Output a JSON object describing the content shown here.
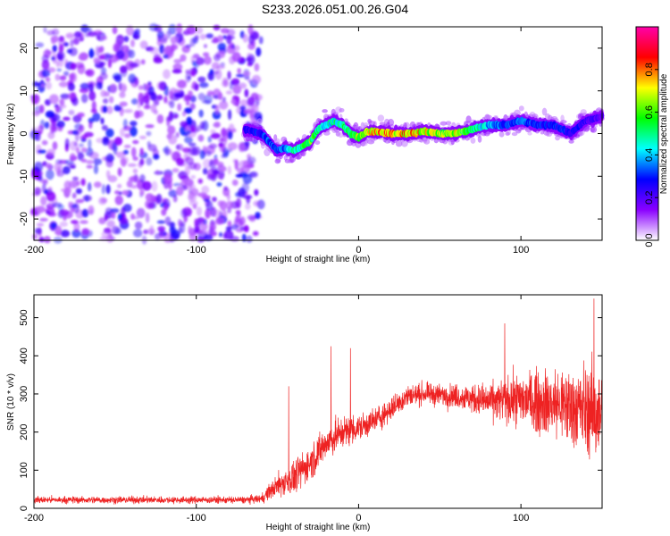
{
  "title": "S233.2026.051.00.26.G04",
  "chart_data": [
    {
      "type": "heatmap",
      "xlabel": "Height of straight line (km)",
      "ylabel": "Frequency (Hz)",
      "xlim": [
        -200,
        150
      ],
      "ylim": [
        -25,
        25
      ],
      "xticks": [
        "-200",
        "-100",
        "0",
        "100"
      ],
      "yticks": [
        "-20",
        "-10",
        "0",
        "10",
        "20"
      ],
      "colorbar": {
        "label": "Normalized spectral amplitude",
        "range": [
          0,
          1
        ],
        "ticks": [
          "0.0",
          "0.2",
          "0.4",
          "0.6",
          "0.8"
        ],
        "colors": [
          "#ffffff",
          "#8a00ff",
          "#0000ff",
          "#00ffff",
          "#00ff00",
          "#ffff00",
          "#ff0000",
          "#ff00aa"
        ]
      },
      "noise_region_x": [
        -200,
        -60
      ],
      "ridge": {
        "x": [
          -70,
          -60,
          -55,
          -50,
          -45,
          -40,
          -35,
          -30,
          -25,
          -20,
          -15,
          -10,
          -5,
          0,
          5,
          10,
          20,
          30,
          40,
          50,
          60,
          70,
          80,
          90,
          100,
          110,
          120,
          130,
          140,
          150
        ],
        "freq": [
          1,
          0,
          -2,
          -4,
          -3.5,
          -4,
          -3,
          -2,
          1,
          2,
          3,
          2,
          0,
          -1,
          0.5,
          0.5,
          0,
          0,
          0.5,
          0,
          0,
          1,
          2,
          2,
          3,
          2,
          2,
          0,
          3,
          4
        ],
        "amplitude": [
          0.25,
          0.3,
          0.35,
          0.3,
          0.4,
          0.5,
          0.55,
          0.65,
          0.5,
          0.45,
          0.5,
          0.55,
          0.6,
          0.7,
          0.75,
          0.85,
          0.8,
          0.8,
          0.75,
          0.7,
          0.7,
          0.55,
          0.4,
          0.35,
          0.35,
          0.3,
          0.3,
          0.3,
          0.25,
          0.2
        ]
      }
    },
    {
      "type": "line",
      "xlabel": "Height of straight line (km)",
      "ylabel": "SNR (10 * v/v)",
      "xlim": [
        -200,
        150
      ],
      "ylim": [
        0,
        560
      ],
      "xticks": [
        "-200",
        "-100",
        "0",
        "100"
      ],
      "yticks": [
        "0",
        "100",
        "200",
        "300",
        "400",
        "500"
      ],
      "color": "#ee2222",
      "envelope": {
        "x": [
          -200,
          -150,
          -100,
          -70,
          -60,
          -50,
          -40,
          -30,
          -20,
          -10,
          0,
          10,
          20,
          30,
          40,
          60,
          80,
          100,
          120,
          140,
          150
        ],
        "mean": [
          22,
          22,
          22,
          22,
          25,
          60,
          80,
          120,
          170,
          200,
          210,
          230,
          260,
          295,
          300,
          295,
          280,
          285,
          275,
          260,
          240
        ],
        "spread": [
          12,
          12,
          12,
          12,
          15,
          40,
          55,
          60,
          60,
          55,
          45,
          45,
          40,
          40,
          35,
          40,
          60,
          90,
          120,
          150,
          160
        ]
      },
      "spikes": [
        {
          "x": -43,
          "y": 320
        },
        {
          "x": -17,
          "y": 425
        },
        {
          "x": -5,
          "y": 420
        },
        {
          "x": 90,
          "y": 485
        },
        {
          "x": 145,
          "y": 550
        }
      ]
    }
  ]
}
